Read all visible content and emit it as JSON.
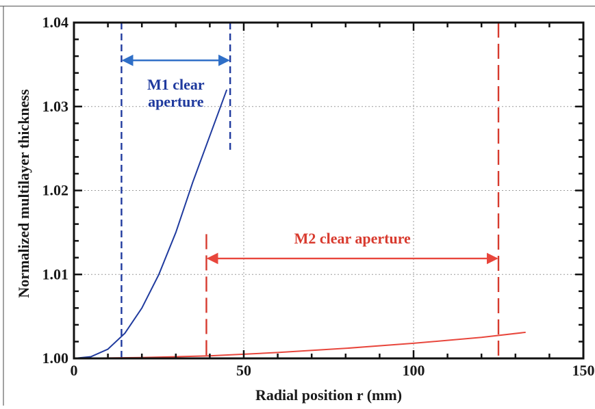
{
  "chart_data": {
    "type": "line",
    "title": "",
    "xlabel": "Radial position r (mm)",
    "ylabel": "Normalized multilayer thickness",
    "xlim": [
      0,
      150
    ],
    "ylim": [
      1.0,
      1.04
    ],
    "x_ticks": [
      0,
      50,
      100,
      150
    ],
    "y_ticks": [
      1.0,
      1.01,
      1.02,
      1.03,
      1.04
    ],
    "x_tick_labels": [
      "0",
      "50",
      "100",
      "150"
    ],
    "y_tick_labels": [
      "1.00",
      "1.01",
      "1.02",
      "1.03",
      "1.04"
    ],
    "grid": true,
    "legend": "none",
    "series": [
      {
        "color": "#1f3a9e",
        "x": [
          0,
          5,
          10,
          15,
          20,
          25,
          30,
          35,
          40,
          45
        ],
        "y": [
          1.0,
          1.0002,
          1.0011,
          1.003,
          1.006,
          1.01,
          1.015,
          1.021,
          1.0265,
          1.032
        ]
      },
      {
        "color": "#e8463c",
        "x": [
          0,
          20,
          40,
          60,
          80,
          100,
          120,
          133
        ],
        "y": [
          1.0,
          1.0001,
          1.0003,
          1.0007,
          1.0012,
          1.0018,
          1.0025,
          1.0031
        ]
      }
    ],
    "annotations": [
      {
        "text_lines": [
          "M1 clear",
          "aperture"
        ],
        "color": "#2f6fc7",
        "text_color": "#1f3a9e",
        "range_x": [
          14,
          46
        ],
        "arrow_y": 1.0355,
        "label_x": 30,
        "label_y": 1.032
      },
      {
        "text_lines": [
          "M2 clear aperture"
        ],
        "color": "#e8463c",
        "text_color": "#d83a2e",
        "range_x": [
          39,
          125
        ],
        "arrow_y": 1.0119,
        "label_x": 82,
        "label_y": 1.0137
      }
    ],
    "vertical_markers": [
      {
        "x": 14,
        "y_from": 1.0,
        "y_to": 1.04,
        "color": "#1f3a9e",
        "style": "short-dash"
      },
      {
        "x": 46,
        "y_from": 1.0248,
        "y_to": 1.04,
        "color": "#1f3a9e",
        "style": "short-dash"
      },
      {
        "x": 39,
        "y_from": 1.0,
        "y_to": 1.0148,
        "color": "#d63a2e",
        "style": "long-dash"
      },
      {
        "x": 125,
        "y_from": 1.0,
        "y_to": 1.04,
        "color": "#d63a2e",
        "style": "long-dash"
      }
    ]
  }
}
